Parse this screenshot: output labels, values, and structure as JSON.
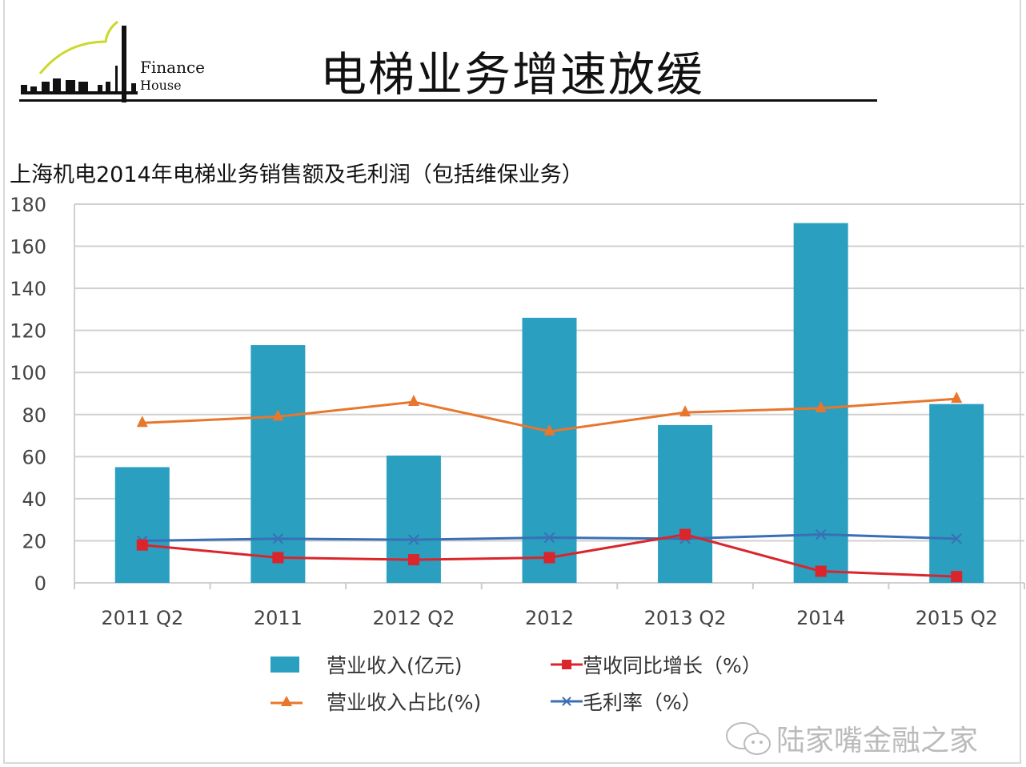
{
  "logo": {
    "text_line1": "Finance",
    "text_line2": "House",
    "mark": "Lujiazui"
  },
  "title": "电梯业务增速放缓",
  "watermark": "陆家嘴金融之家",
  "colors": {
    "bar": "#2a9fc0",
    "growth": "#d9252b",
    "share": "#e8772e",
    "margin": "#3a6fb5"
  },
  "chart_data": {
    "type": "bar",
    "title": "上海机电2014年电梯业务销售额及毛利润（包括维保业务）",
    "categories": [
      "2011 Q2",
      "2011",
      "2012 Q2",
      "2012",
      "2013 Q2",
      "2014",
      "2015 Q2"
    ],
    "ylim": [
      0,
      180
    ],
    "yticks": [
      0,
      20,
      40,
      60,
      80,
      100,
      120,
      140,
      160,
      180
    ],
    "grid": true,
    "legend_position": "bottom",
    "series": [
      {
        "name": "营业收入(亿元)",
        "type": "bar",
        "values": [
          55,
          113,
          60.5,
          126,
          75,
          171,
          85
        ]
      },
      {
        "name": "营收同比增长（%）",
        "type": "line",
        "marker": "square",
        "values": [
          18,
          12,
          11,
          12,
          23,
          5.5,
          3
        ]
      },
      {
        "name": "营业收入占比(%)",
        "type": "line",
        "marker": "triangle",
        "values": [
          76,
          79,
          86,
          72,
          81,
          83,
          87.5
        ]
      },
      {
        "name": "毛利率（%）",
        "type": "line",
        "marker": "x",
        "values": [
          20,
          21,
          20.5,
          21.5,
          21,
          23,
          21
        ]
      }
    ]
  }
}
